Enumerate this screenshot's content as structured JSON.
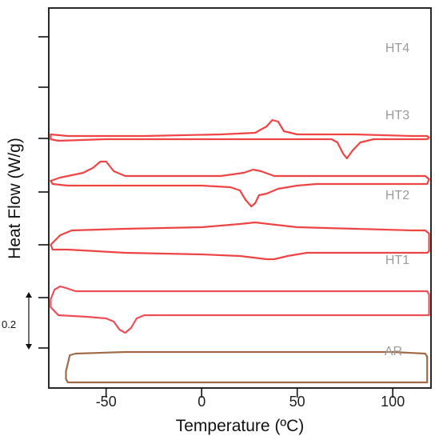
{
  "chart_data": {
    "type": "line",
    "xlabel": "Temperature (ºC)",
    "ylabel": "Heat Flow (W/g)",
    "xlim": [
      -80,
      120
    ],
    "x_ticks": [
      -50,
      0,
      50,
      100
    ],
    "x_tick_labels": [
      "-50",
      "0",
      "50",
      "100"
    ],
    "y_ticks_count": 7,
    "y_tick_labels_visible": false,
    "grid": false,
    "scale_bar": {
      "label": "0.2",
      "value": 0.2,
      "unit": "W/g",
      "arrow": "double"
    },
    "series": [
      {
        "name": "HT4",
        "color": "#ef4444",
        "path": [
          [
            -79,
            2.36
          ],
          [
            -70,
            2.35
          ],
          [
            -30,
            2.35
          ],
          [
            10,
            2.36
          ],
          [
            28,
            2.37
          ],
          [
            34,
            2.41
          ],
          [
            37,
            2.45
          ],
          [
            40,
            2.44
          ],
          [
            43,
            2.38
          ],
          [
            50,
            2.36
          ],
          [
            80,
            2.36
          ],
          [
            110,
            2.35
          ],
          [
            118,
            2.35
          ],
          [
            119,
            2.34
          ],
          [
            118,
            2.33
          ],
          [
            110,
            2.33
          ],
          [
            90,
            2.33
          ],
          [
            83,
            2.31
          ],
          [
            79,
            2.26
          ],
          [
            76,
            2.21
          ],
          [
            74,
            2.24
          ],
          [
            71,
            2.31
          ],
          [
            68,
            2.33
          ],
          [
            50,
            2.33
          ],
          [
            0,
            2.33
          ],
          [
            -50,
            2.33
          ],
          [
            -75,
            2.32
          ],
          [
            -79,
            2.33
          ],
          [
            -79,
            2.36
          ]
        ]
      },
      {
        "name": "HT3",
        "color": "#ef4444",
        "path": [
          [
            -79,
            2.07
          ],
          [
            -74,
            2.09
          ],
          [
            -62,
            2.12
          ],
          [
            -57,
            2.15
          ],
          [
            -53,
            2.19
          ],
          [
            -50,
            2.19
          ],
          [
            -46,
            2.13
          ],
          [
            -40,
            2.1
          ],
          [
            -20,
            2.1
          ],
          [
            10,
            2.1
          ],
          [
            22,
            2.12
          ],
          [
            27,
            2.14
          ],
          [
            31,
            2.13
          ],
          [
            38,
            2.1
          ],
          [
            60,
            2.1
          ],
          [
            100,
            2.1
          ],
          [
            117,
            2.1
          ],
          [
            119,
            2.08
          ],
          [
            118,
            2.05
          ],
          [
            100,
            2.05
          ],
          [
            80,
            2.05
          ],
          [
            60,
            2.05
          ],
          [
            50,
            2.04
          ],
          [
            40,
            2.02
          ],
          [
            34,
            1.99
          ],
          [
            30,
            1.98
          ],
          [
            28,
            1.93
          ],
          [
            26,
            1.91
          ],
          [
            23,
            1.95
          ],
          [
            20,
            2.01
          ],
          [
            15,
            2.03
          ],
          [
            0,
            2.04
          ],
          [
            -40,
            2.04
          ],
          [
            -70,
            2.04
          ],
          [
            -78,
            2.05
          ],
          [
            -79,
            2.07
          ]
        ]
      },
      {
        "name": "HT2",
        "color": "#ef4444",
        "path": [
          [
            -79,
            1.67
          ],
          [
            -74,
            1.73
          ],
          [
            -68,
            1.76
          ],
          [
            -40,
            1.77
          ],
          [
            0,
            1.78
          ],
          [
            20,
            1.8
          ],
          [
            28,
            1.81
          ],
          [
            35,
            1.8
          ],
          [
            50,
            1.78
          ],
          [
            80,
            1.77
          ],
          [
            110,
            1.76
          ],
          [
            117,
            1.76
          ],
          [
            119,
            1.74
          ],
          [
            119,
            1.63
          ],
          [
            118,
            1.62
          ],
          [
            100,
            1.62
          ],
          [
            70,
            1.62
          ],
          [
            55,
            1.62
          ],
          [
            45,
            1.6
          ],
          [
            38,
            1.58
          ],
          [
            34,
            1.58
          ],
          [
            20,
            1.6
          ],
          [
            0,
            1.61
          ],
          [
            -40,
            1.62
          ],
          [
            -70,
            1.64
          ],
          [
            -78,
            1.64
          ],
          [
            -79,
            1.67
          ]
        ]
      },
      {
        "name": "HT1",
        "color": "#ee4d5a",
        "path": [
          [
            -79,
            1.33
          ],
          [
            -77,
            1.39
          ],
          [
            -74,
            1.41
          ],
          [
            -71,
            1.4
          ],
          [
            -66,
            1.38
          ],
          [
            -40,
            1.38
          ],
          [
            0,
            1.38
          ],
          [
            60,
            1.38
          ],
          [
            110,
            1.38
          ],
          [
            118,
            1.38
          ],
          [
            119,
            1.36
          ],
          [
            119,
            1.23
          ],
          [
            118,
            1.23
          ],
          [
            80,
            1.23
          ],
          [
            40,
            1.23
          ],
          [
            0,
            1.23
          ],
          [
            -30,
            1.23
          ],
          [
            -34,
            1.21
          ],
          [
            -37,
            1.15
          ],
          [
            -40,
            1.12
          ],
          [
            -43,
            1.14
          ],
          [
            -46,
            1.19
          ],
          [
            -50,
            1.21
          ],
          [
            -60,
            1.22
          ],
          [
            -75,
            1.23
          ],
          [
            -79,
            1.28
          ],
          [
            -79,
            1.33
          ]
        ]
      },
      {
        "name": "AR",
        "color": "#a06b46",
        "path": [
          [
            -71,
            0.88
          ],
          [
            -69,
            0.98
          ],
          [
            -66,
            0.99
          ],
          [
            -40,
            1.0
          ],
          [
            0,
            1.0
          ],
          [
            50,
            1.0
          ],
          [
            100,
            1.0
          ],
          [
            117,
            0.99
          ],
          [
            118,
            0.97
          ],
          [
            118,
            0.81
          ],
          [
            117,
            0.81
          ],
          [
            100,
            0.81
          ],
          [
            60,
            0.81
          ],
          [
            0,
            0.81
          ],
          [
            -50,
            0.81
          ],
          [
            -65,
            0.81
          ],
          [
            -70,
            0.81
          ],
          [
            -71,
            0.83
          ],
          [
            -71,
            0.88
          ]
        ]
      }
    ],
    "labels": [
      "HT4",
      "HT3",
      "HT2",
      "HT1",
      "AR"
    ]
  }
}
